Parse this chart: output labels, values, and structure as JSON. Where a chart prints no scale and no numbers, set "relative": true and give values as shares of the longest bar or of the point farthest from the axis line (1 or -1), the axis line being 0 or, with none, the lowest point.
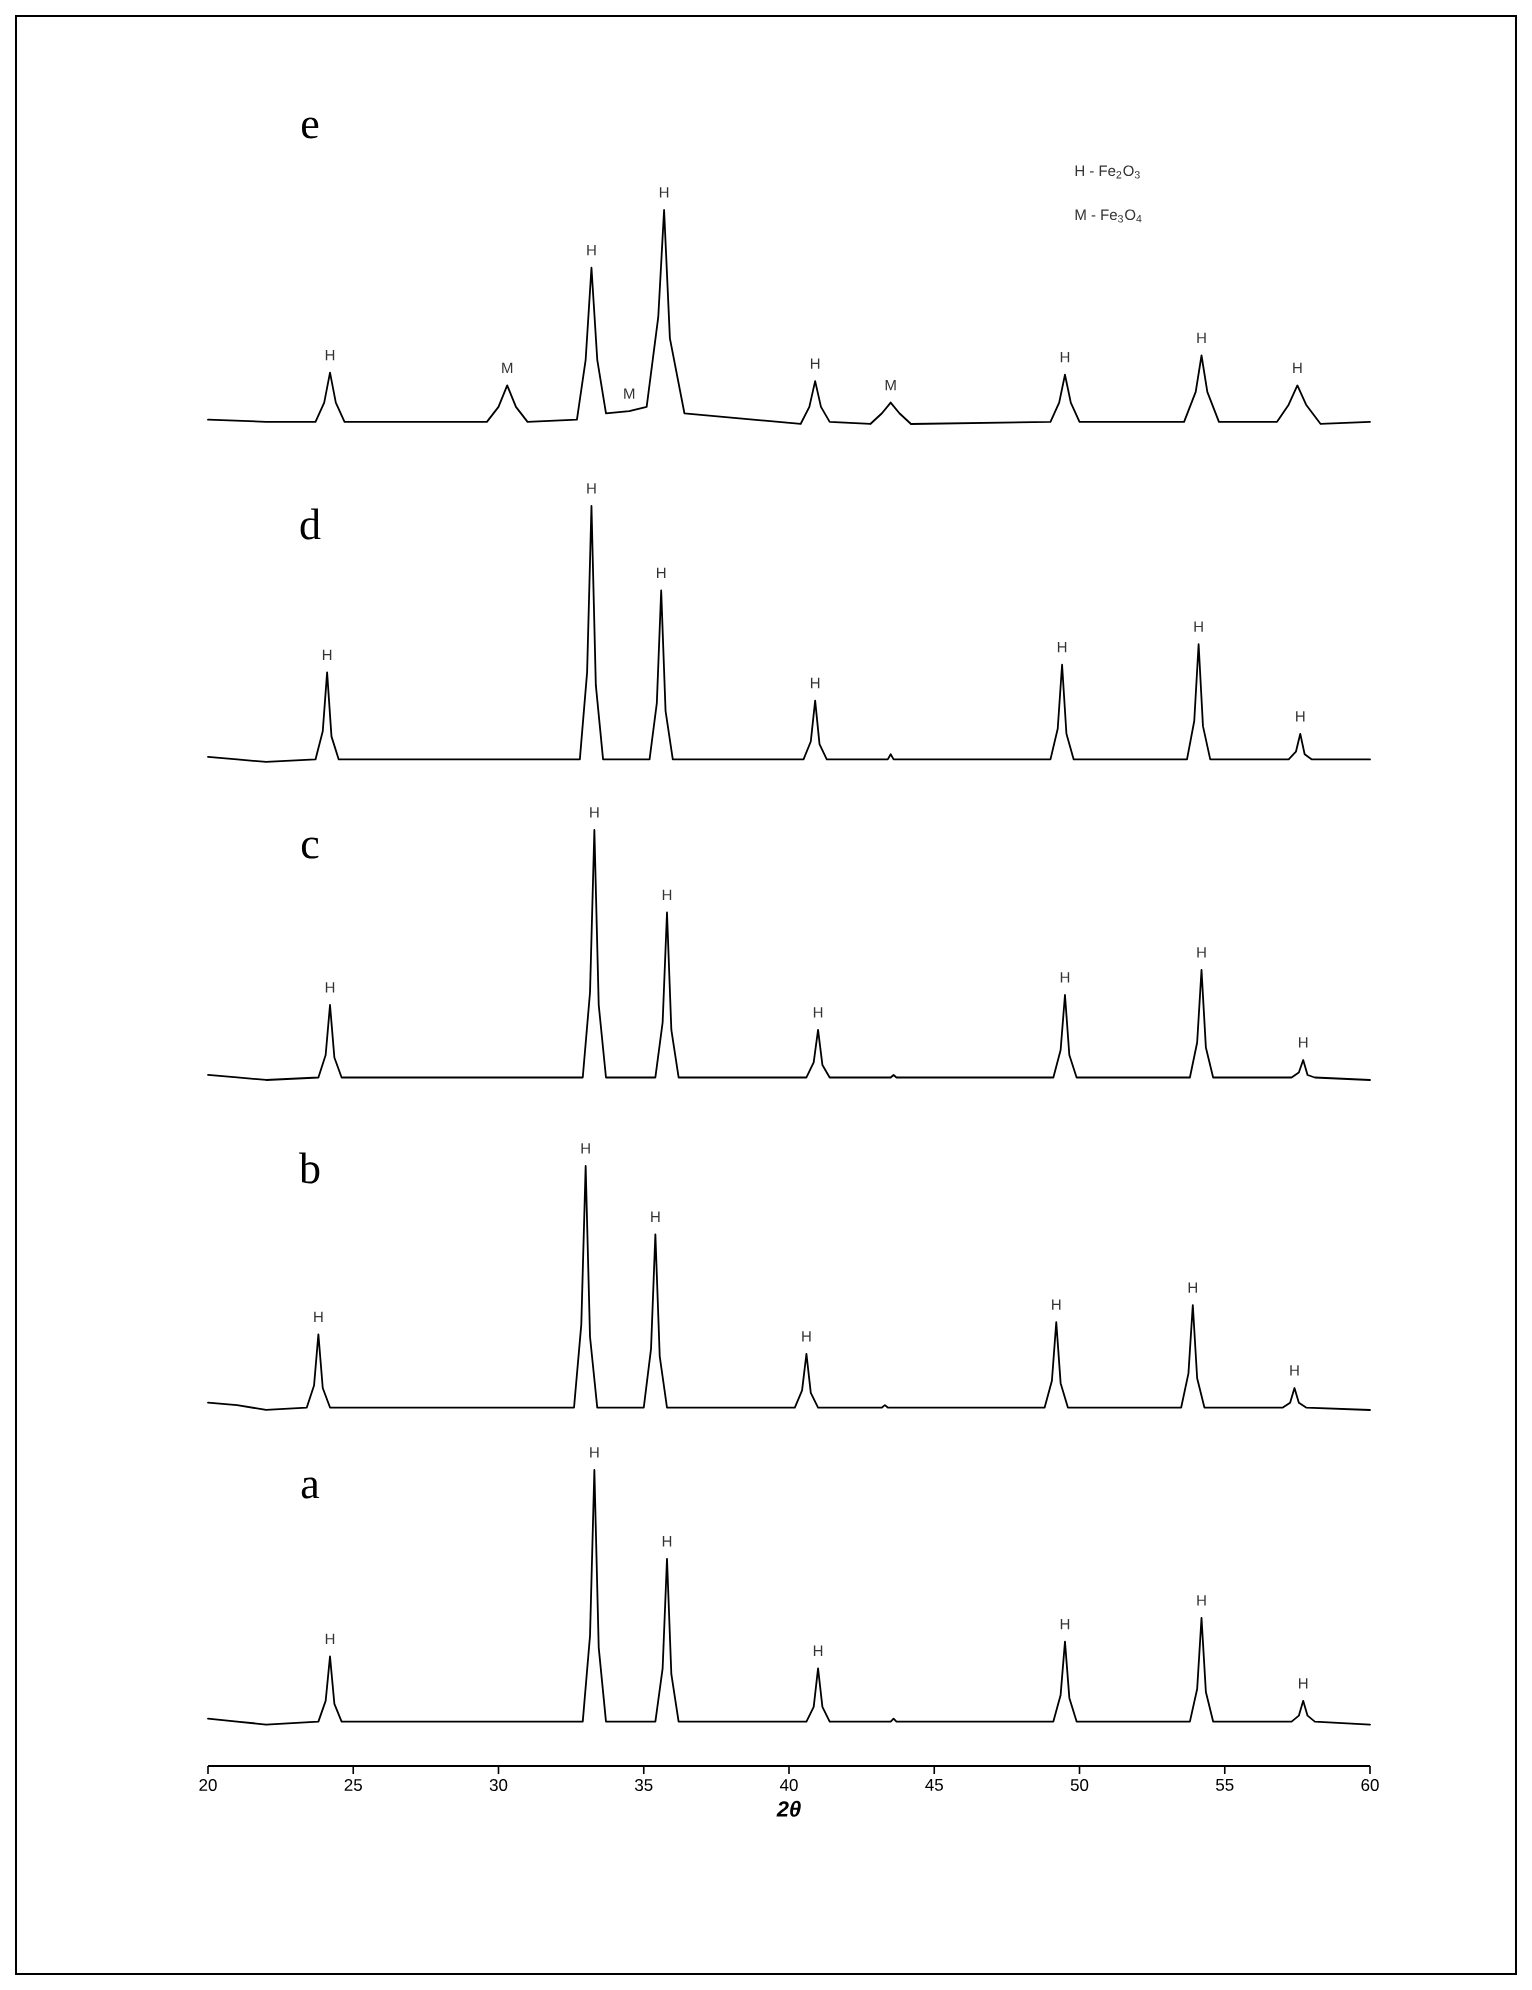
{
  "chart_data": [
    {
      "type": "line",
      "title": "e",
      "relative": true,
      "xlim": [
        20,
        60
      ],
      "tick_labels": false,
      "x": [
        20,
        22,
        23.7,
        24.0,
        24.2,
        24.4,
        24.7,
        29.6,
        30.0,
        30.3,
        30.6,
        31.0,
        32.7,
        33.0,
        33.2,
        33.4,
        33.7,
        34.5,
        35.1,
        35.5,
        35.7,
        35.9,
        36.4,
        40.4,
        40.7,
        40.9,
        41.1,
        41.4,
        42.8,
        43.2,
        43.5,
        43.8,
        44.2,
        49.0,
        49.3,
        49.5,
        49.7,
        50.0,
        53.6,
        54.0,
        54.2,
        54.4,
        54.8,
        56.8,
        57.2,
        57.5,
        57.8,
        58.3,
        60
      ],
      "series": [
        {
          "color": "#000000",
          "values": [
            0.02,
            0.01,
            0.01,
            0.1,
            0.24,
            0.1,
            0.01,
            0.01,
            0.08,
            0.18,
            0.08,
            0.01,
            0.02,
            0.3,
            0.73,
            0.3,
            0.05,
            0.06,
            0.08,
            0.5,
            1,
            0.4,
            0.05,
            0.0,
            0.08,
            0.2,
            0.08,
            0.01,
            0.0,
            0.05,
            0.1,
            0.05,
            0.0,
            0.01,
            0.1,
            0.23,
            0.1,
            0.01,
            0.01,
            0.15,
            0.32,
            0.15,
            0.01,
            0.01,
            0.09,
            0.18,
            0.09,
            0.0,
            0.01
          ]
        }
      ],
      "annotations": [
        "H - Fe$_{2}$O$_{3}$",
        "M - Fe$_{3}$O$_{4}$",
        {
          "text": "H",
          "x": 24.2,
          "y": 0.24
        },
        {
          "text": "M",
          "x": 30.3,
          "y": 0.18
        },
        {
          "text": "H",
          "x": 33.2,
          "y": 0.73
        },
        {
          "text": "M",
          "x": 34.5,
          "y": 0.06
        },
        {
          "text": "H",
          "x": 35.7,
          "y": 1
        },
        {
          "text": "H",
          "x": 40.9,
          "y": 0.2
        },
        {
          "text": "M",
          "x": 43.5,
          "y": 0.1
        },
        {
          "text": "H",
          "x": 49.5,
          "y": 0.23
        },
        {
          "text": "H",
          "x": 54.2,
          "y": 0.32
        },
        {
          "text": "H",
          "x": 57.5,
          "y": 0.18
        }
      ]
    },
    {
      "type": "line",
      "title": "d",
      "relative": true,
      "xlim": [
        20,
        60
      ],
      "tick_labels": false,
      "x": [
        20,
        21,
        22,
        23.7,
        23.95,
        24.1,
        24.25,
        24.5,
        32.8,
        33.05,
        33.2,
        33.35,
        33.6,
        35.2,
        35.45,
        35.6,
        35.75,
        36.0,
        40.5,
        40.75,
        40.9,
        41.05,
        41.3,
        43.4,
        43.5,
        43.6,
        49.0,
        49.25,
        49.4,
        49.55,
        49.8,
        53.7,
        53.95,
        54.1,
        54.25,
        54.5,
        57.2,
        57.45,
        57.6,
        57.75,
        58.0,
        60
      ],
      "series": [
        {
          "color": "#000000",
          "values": [
            0.02,
            0.01,
            0.0,
            0.01,
            0.12,
            0.35,
            0.1,
            0.01,
            0.01,
            0.35,
            1,
            0.3,
            0.01,
            0.01,
            0.23,
            0.67,
            0.2,
            0.01,
            0.01,
            0.08,
            0.24,
            0.07,
            0.01,
            0.01,
            0.03,
            0.01,
            0.01,
            0.13,
            0.38,
            0.11,
            0.01,
            0.01,
            0.16,
            0.46,
            0.14,
            0.01,
            0.01,
            0.04,
            0.11,
            0.03,
            0.01,
            0.01
          ]
        }
      ],
      "annotations": [
        {
          "text": "H",
          "x": 24.1,
          "y": 0.35
        },
        {
          "text": "H",
          "x": 33.2,
          "y": 1
        },
        {
          "text": "H",
          "x": 35.6,
          "y": 0.67
        },
        {
          "text": "H",
          "x": 40.9,
          "y": 0.24
        },
        {
          "text": "H",
          "x": 49.4,
          "y": 0.38
        },
        {
          "text": "H",
          "x": 54.1,
          "y": 0.46
        },
        {
          "text": "H",
          "x": 57.6,
          "y": 0.11
        }
      ]
    },
    {
      "type": "line",
      "title": "c",
      "relative": true,
      "xlim": [
        20,
        60
      ],
      "tick_labels": false,
      "x": [
        20,
        21,
        22,
        23.8,
        24.05,
        24.2,
        24.35,
        24.6,
        32.9,
        33.15,
        33.3,
        33.45,
        33.7,
        35.4,
        35.65,
        35.8,
        35.95,
        36.2,
        40.6,
        40.85,
        41.0,
        41.15,
        41.4,
        43.5,
        43.6,
        43.7,
        49.1,
        49.35,
        49.5,
        49.65,
        49.9,
        53.8,
        54.05,
        54.2,
        54.35,
        54.6,
        57.3,
        57.55,
        57.7,
        57.85,
        58.1,
        60
      ],
      "series": [
        {
          "color": "#000000",
          "values": [
            0.02,
            0.01,
            0.0,
            0.01,
            0.1,
            0.3,
            0.09,
            0.01,
            0.01,
            0.35,
            1,
            0.3,
            0.01,
            0.01,
            0.23,
            0.67,
            0.2,
            0.01,
            0.01,
            0.07,
            0.2,
            0.06,
            0.01,
            0.01,
            0.02,
            0.01,
            0.01,
            0.12,
            0.34,
            0.1,
            0.01,
            0.01,
            0.15,
            0.44,
            0.13,
            0.01,
            0.01,
            0.03,
            0.08,
            0.02,
            0.01,
            0.0
          ]
        }
      ],
      "annotations": [
        {
          "text": "H",
          "x": 24.2,
          "y": 0.3
        },
        {
          "text": "H",
          "x": 33.3,
          "y": 1
        },
        {
          "text": "H",
          "x": 35.8,
          "y": 0.67
        },
        {
          "text": "H",
          "x": 41.0,
          "y": 0.2
        },
        {
          "text": "H",
          "x": 49.5,
          "y": 0.34
        },
        {
          "text": "H",
          "x": 54.2,
          "y": 0.44
        },
        {
          "text": "H",
          "x": 57.7,
          "y": 0.08
        }
      ]
    },
    {
      "type": "line",
      "title": "b",
      "relative": true,
      "xlim": [
        20,
        60
      ],
      "tick_labels": false,
      "x": [
        20,
        21,
        22,
        23.4,
        23.65,
        23.8,
        23.95,
        24.2,
        32.6,
        32.85,
        33.0,
        33.15,
        33.4,
        35.0,
        35.25,
        35.4,
        35.55,
        35.8,
        40.2,
        40.45,
        40.6,
        40.75,
        41.0,
        43.2,
        43.3,
        43.4,
        48.8,
        49.05,
        49.2,
        49.35,
        49.6,
        53.5,
        53.75,
        53.9,
        54.05,
        54.3,
        57.0,
        57.25,
        57.4,
        57.55,
        57.8,
        60
      ],
      "series": [
        {
          "color": "#000000",
          "values": [
            0.03,
            0.02,
            0.0,
            0.01,
            0.1,
            0.31,
            0.09,
            0.01,
            0.01,
            0.35,
            1,
            0.3,
            0.01,
            0.01,
            0.25,
            0.72,
            0.22,
            0.01,
            0.01,
            0.08,
            0.23,
            0.07,
            0.01,
            0.01,
            0.02,
            0.01,
            0.01,
            0.12,
            0.36,
            0.11,
            0.01,
            0.01,
            0.15,
            0.43,
            0.13,
            0.01,
            0.01,
            0.03,
            0.09,
            0.03,
            0.01,
            0.0
          ]
        }
      ],
      "annotations": [
        {
          "text": "H",
          "x": 23.8,
          "y": 0.31
        },
        {
          "text": "H",
          "x": 33.0,
          "y": 1
        },
        {
          "text": "H",
          "x": 35.4,
          "y": 0.72
        },
        {
          "text": "H",
          "x": 40.6,
          "y": 0.23
        },
        {
          "text": "H",
          "x": 49.2,
          "y": 0.36
        },
        {
          "text": "H",
          "x": 53.9,
          "y": 0.43
        },
        {
          "text": "H",
          "x": 57.4,
          "y": 0.09
        }
      ]
    },
    {
      "type": "line",
      "title": "a",
      "relative": true,
      "xlim": [
        20,
        60
      ],
      "tick_labels": "x",
      "xlabel": "2θ",
      "xticks": [
        20,
        25,
        30,
        35,
        40,
        45,
        50,
        55,
        60
      ],
      "x": [
        20,
        21,
        22,
        23.8,
        24.05,
        24.2,
        24.35,
        24.6,
        32.9,
        33.15,
        33.3,
        33.45,
        33.7,
        35.4,
        35.65,
        35.8,
        35.95,
        36.2,
        40.6,
        40.85,
        41.0,
        41.15,
        41.4,
        43.5,
        43.6,
        43.7,
        49.1,
        49.35,
        49.5,
        49.65,
        49.9,
        53.8,
        54.05,
        54.2,
        54.35,
        54.6,
        57.3,
        57.55,
        57.7,
        57.85,
        58.1,
        60
      ],
      "series": [
        {
          "color": "#000000",
          "values": [
            0.16,
            0.15,
            0.14,
            0.15,
            0.22,
            0.37,
            0.21,
            0.15,
            0.15,
            0.44,
            1,
            0.4,
            0.15,
            0.15,
            0.33,
            0.7,
            0.31,
            0.15,
            0.15,
            0.2,
            0.33,
            0.2,
            0.15,
            0.15,
            0.16,
            0.15,
            0.15,
            0.24,
            0.42,
            0.23,
            0.15,
            0.15,
            0.26,
            0.5,
            0.25,
            0.15,
            0.15,
            0.17,
            0.22,
            0.17,
            0.15,
            0.14
          ]
        }
      ],
      "annotations": [
        {
          "text": "H",
          "x": 24.2,
          "y": 0.37
        },
        {
          "text": "H",
          "x": 33.3,
          "y": 1
        },
        {
          "text": "H",
          "x": 35.8,
          "y": 0.7
        },
        {
          "text": "H",
          "x": 41.0,
          "y": 0.33
        },
        {
          "text": "H",
          "x": 49.5,
          "y": 0.42
        },
        {
          "text": "H",
          "x": 54.2,
          "y": 0.5
        },
        {
          "text": "H",
          "x": 57.7,
          "y": 0.22
        }
      ]
    }
  ]
}
